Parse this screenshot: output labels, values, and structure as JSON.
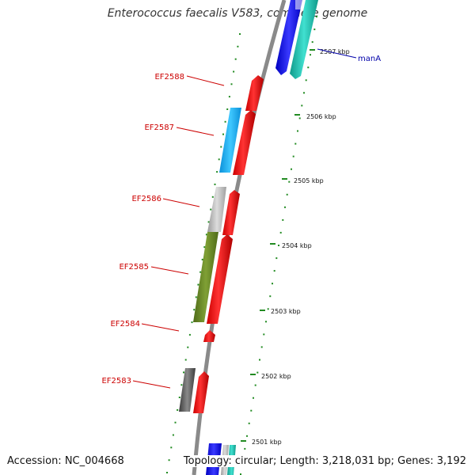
{
  "title": "Enterococcus faecalis V583, complete genome",
  "accession": "Accession: NC_004668",
  "topology": "Topology: circular; Length: 3,218,031 bp; Genes: 3,192",
  "colors": {
    "backbone": "#8a8a8a",
    "forward_gene": "#ff0000",
    "scale_tick": "#228b22",
    "scale_label": "#111111",
    "gene_label": "#cc0000",
    "highlight_label": "#0000aa"
  },
  "scale_ticks": [
    {
      "kbp": 2501,
      "label": "2501 kbp"
    },
    {
      "kbp": 2502,
      "label": "2502 kbp"
    },
    {
      "kbp": 2503,
      "label": "2503 kbp"
    },
    {
      "kbp": 2504,
      "label": "2504 kbp"
    },
    {
      "kbp": 2505,
      "label": "2505 kbp"
    },
    {
      "kbp": 2506,
      "label": "2506 kbp"
    },
    {
      "kbp": 2507,
      "label": "2507 kbp"
    }
  ],
  "gene_labels": [
    {
      "text": "EF2588",
      "name": "label-ef2588"
    },
    {
      "text": "EF2587",
      "name": "label-ef2587"
    },
    {
      "text": "EF2586",
      "name": "label-ef2586"
    },
    {
      "text": "EF2585",
      "name": "label-ef2585"
    },
    {
      "text": "EF2584",
      "name": "label-ef2584"
    },
    {
      "text": "EF2583",
      "name": "label-ef2583"
    }
  ],
  "highlight_label": {
    "text": "manA"
  },
  "features": [
    {
      "name": "gene-ef2588",
      "color": "#ff0000"
    },
    {
      "name": "gene-ef2587",
      "color": "#ff0000"
    },
    {
      "name": "cog-ef2587",
      "color": "#1ab3ff"
    },
    {
      "name": "gene-ef2586",
      "color": "#ff0000"
    },
    {
      "name": "cog-ef2586",
      "color": "#c0c0c0"
    },
    {
      "name": "gene-ef2585",
      "color": "#ff0000"
    },
    {
      "name": "cog-ef2585",
      "color": "#6b8e23"
    },
    {
      "name": "gene-ef2584",
      "color": "#ff0000"
    },
    {
      "name": "gene-ef2583",
      "color": "#ff0000"
    },
    {
      "name": "cog-ef2583",
      "color": "#666666"
    },
    {
      "name": "gene-mana",
      "color": "#1a1aff"
    },
    {
      "name": "cog-mana",
      "color": "#20c0b0"
    }
  ]
}
